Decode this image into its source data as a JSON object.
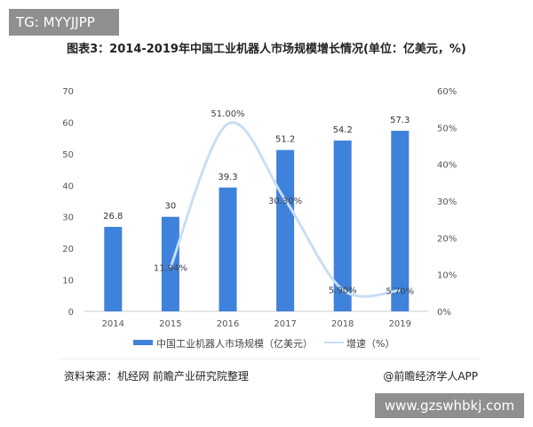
{
  "watermark_tg": "TG: MYYJJPP",
  "watermark_url": "www.gzswhbkj.com",
  "source": "资料来源：机经网 前瞻产业研究院整理",
  "credit": "@前瞻经济学人APP",
  "chart_data": {
    "type": "bar",
    "title": "图表3：2014-2019年中国工业机器人市场规模增长情况(单位：亿美元，%)",
    "categories": [
      "2014",
      "2015",
      "2016",
      "2017",
      "2018",
      "2019"
    ],
    "series": [
      {
        "name": "中国工业机器人市场规模（亿美元）",
        "type": "bar",
        "axis": "left",
        "color": "#3f82dc",
        "values": [
          26.8,
          30,
          39.3,
          51.2,
          54.2,
          57.3
        ],
        "labels": [
          "26.8",
          "30",
          "39.3",
          "51.2",
          "54.2",
          "57.3"
        ]
      },
      {
        "name": "增速（%）",
        "type": "line",
        "axis": "right",
        "color": "#c8def5",
        "values": [
          null,
          11.94,
          51.0,
          30.3,
          5.9,
          5.7
        ],
        "labels": [
          "",
          "11.94%",
          "51.00%",
          "30.30%",
          "5.90%",
          "5.70%"
        ]
      }
    ],
    "left_axis": {
      "ylim": [
        0,
        70
      ],
      "ticks": [
        "0",
        "10",
        "20",
        "30",
        "40",
        "50",
        "60",
        "70"
      ]
    },
    "right_axis": {
      "ylim": [
        0,
        60
      ],
      "ticks": [
        "0%",
        "10%",
        "20%",
        "30%",
        "40%",
        "50%",
        "60%"
      ]
    },
    "legend": "bottom",
    "grid": false
  }
}
